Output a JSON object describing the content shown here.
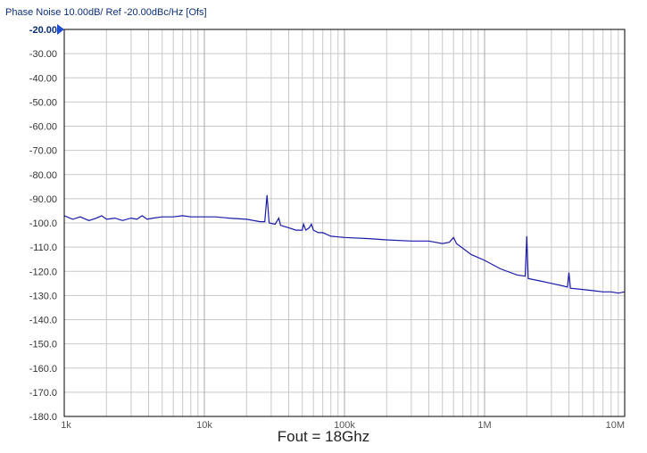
{
  "header": {
    "text": "Phase Noise 10.00dB/ Ref -20.00dBc/Hz [Ofs]"
  },
  "caption": "Fout = 18Ghz",
  "colors": {
    "trace": "#1a1aa8",
    "grid": "#c8c8c8",
    "border": "#000000",
    "header_text": "#0b2f7a",
    "ref_marker": "#1f4fd0"
  },
  "chart_data": {
    "type": "line",
    "title": "Phase Noise 10.00dB/ Ref -20.00dBc/Hz [Ofs]",
    "xscale": "log",
    "xlim": [
      1000,
      10000000
    ],
    "ylim": [
      -180,
      -20
    ],
    "grid": true,
    "reference_level": -20,
    "y_ticks": [
      "-20.00",
      "-30.00",
      "-40.00",
      "-50.00",
      "-60.00",
      "-70.00",
      "-80.00",
      "-90.00",
      "-100.0",
      "-110.0",
      "-120.0",
      "-130.0",
      "-140.0",
      "-150.0",
      "-160.0",
      "-170.0",
      "-180.0"
    ],
    "x_ticks": [
      {
        "label": "1k",
        "value": 1000
      },
      {
        "label": "10k",
        "value": 10000
      },
      {
        "label": "100k",
        "value": 100000
      },
      {
        "label": "1M",
        "value": 1000000
      },
      {
        "label": "10M",
        "value": 10000000
      }
    ],
    "series": [
      {
        "points": [
          [
            1000,
            -97
          ],
          [
            1150,
            -98.5
          ],
          [
            1300,
            -97.5
          ],
          [
            1500,
            -99
          ],
          [
            1700,
            -98
          ],
          [
            1850,
            -97
          ],
          [
            2000,
            -98.5
          ],
          [
            2300,
            -98
          ],
          [
            2600,
            -99
          ],
          [
            3000,
            -98
          ],
          [
            3300,
            -98.5
          ],
          [
            3600,
            -97
          ],
          [
            3900,
            -98.5
          ],
          [
            4300,
            -98
          ],
          [
            5000,
            -97.5
          ],
          [
            6000,
            -97.5
          ],
          [
            7000,
            -97
          ],
          [
            8000,
            -97.5
          ],
          [
            10000,
            -97.5
          ],
          [
            12000,
            -97.5
          ],
          [
            15000,
            -98
          ],
          [
            20000,
            -98.5
          ],
          [
            25000,
            -99.5
          ],
          [
            27000,
            -99.5
          ],
          [
            28000,
            -88.5
          ],
          [
            29000,
            -100
          ],
          [
            32000,
            -100.5
          ],
          [
            34000,
            -98
          ],
          [
            35000,
            -101
          ],
          [
            40000,
            -102
          ],
          [
            45000,
            -103
          ],
          [
            50000,
            -103
          ],
          [
            51000,
            -100.5
          ],
          [
            53000,
            -103
          ],
          [
            56000,
            -102
          ],
          [
            58000,
            -100.5
          ],
          [
            60000,
            -103
          ],
          [
            65000,
            -104
          ],
          [
            70000,
            -104
          ],
          [
            80000,
            -105.5
          ],
          [
            100000,
            -106
          ],
          [
            150000,
            -106.5
          ],
          [
            200000,
            -107
          ],
          [
            300000,
            -107.5
          ],
          [
            400000,
            -107.5
          ],
          [
            500000,
            -108.5
          ],
          [
            560000,
            -108
          ],
          [
            600000,
            -106
          ],
          [
            630000,
            -108.5
          ],
          [
            700000,
            -110.5
          ],
          [
            800000,
            -113
          ],
          [
            1000000,
            -115.5
          ],
          [
            1300000,
            -119
          ],
          [
            1700000,
            -121.5
          ],
          [
            1950000,
            -122
          ],
          [
            2000000,
            -105.5
          ],
          [
            2050000,
            -123
          ],
          [
            2500000,
            -124
          ],
          [
            3000000,
            -125
          ],
          [
            3600000,
            -126
          ],
          [
            3900000,
            -126.5
          ],
          [
            4000000,
            -120.5
          ],
          [
            4100000,
            -127
          ],
          [
            5000000,
            -127.5
          ],
          [
            6000000,
            -128
          ],
          [
            7000000,
            -128.5
          ],
          [
            8000000,
            -128.5
          ],
          [
            9000000,
            -129
          ],
          [
            10000000,
            -128.5
          ]
        ]
      }
    ]
  }
}
